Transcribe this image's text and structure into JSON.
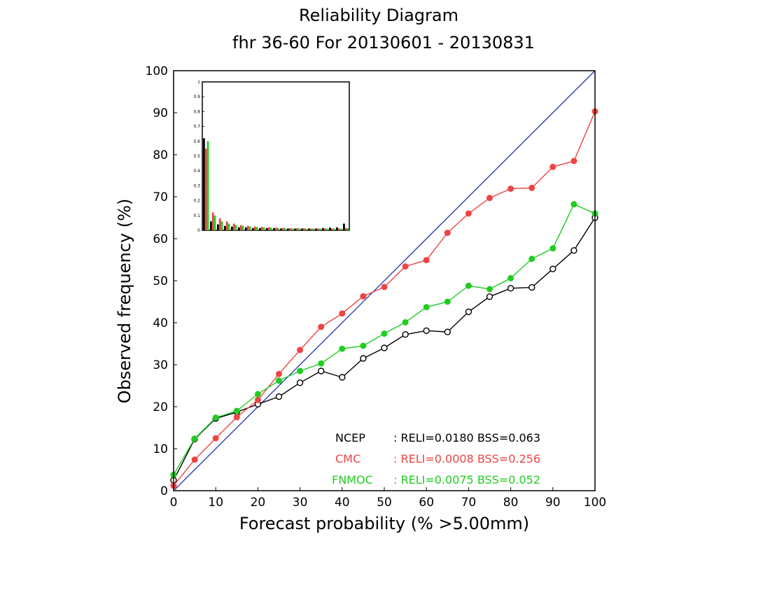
{
  "chart_data": {
    "type": "line",
    "title": "Reliability Diagram",
    "subtitle": "fhr 36-60 For 20130601 - 20130831",
    "xlabel": "Forecast probability (% >5.00mm)",
    "ylabel": "Observed frequency (%)",
    "xlim": [
      0,
      100
    ],
    "ylim": [
      0,
      100
    ],
    "xticks": [
      "0",
      "10",
      "20",
      "30",
      "40",
      "50",
      "60",
      "70",
      "80",
      "90",
      "100"
    ],
    "yticks": [
      "0",
      "10",
      "20",
      "30",
      "40",
      "50",
      "60",
      "70",
      "80",
      "90",
      "100"
    ],
    "grid": false,
    "diagonal_color": "#2233aa",
    "series": [
      {
        "name": "NCEP",
        "color": "#000000",
        "marker": "open-circle",
        "x": [
          0,
          5,
          10,
          15,
          20,
          25,
          30,
          35,
          40,
          45,
          50,
          55,
          60,
          65,
          70,
          75,
          80,
          85,
          90,
          95,
          100
        ],
        "y": [
          2.5,
          12.3,
          17.2,
          18.7,
          20.6,
          22.4,
          25.7,
          28.5,
          27.0,
          31.5,
          34.0,
          37.2,
          38.1,
          37.8,
          42.6,
          46.2,
          48.2,
          48.4,
          52.8,
          57.2,
          65.0
        ]
      },
      {
        "name": "CMC",
        "color": "#ee4444",
        "marker": "filled-circle",
        "x": [
          0,
          5,
          10,
          15,
          20,
          25,
          30,
          35,
          40,
          45,
          50,
          55,
          60,
          65,
          70,
          75,
          80,
          85,
          90,
          95,
          100
        ],
        "y": [
          1.2,
          7.4,
          12.5,
          17.5,
          21.6,
          27.8,
          33.5,
          39.0,
          42.2,
          46.3,
          48.5,
          53.4,
          54.9,
          61.4,
          66.0,
          69.7,
          71.9,
          72.1,
          77.1,
          78.5,
          90.3
        ]
      },
      {
        "name": "FNMOC",
        "color": "#22cc22",
        "marker": "filled-circle",
        "x": [
          0,
          5,
          10,
          15,
          20,
          25,
          30,
          35,
          40,
          45,
          50,
          55,
          60,
          65,
          70,
          75,
          80,
          85,
          90,
          95,
          100
        ],
        "y": [
          3.8,
          12.4,
          17.4,
          19.0,
          23.0,
          26.2,
          28.5,
          30.3,
          33.8,
          34.5,
          37.4,
          40.1,
          43.7,
          45.0,
          48.8,
          48.0,
          50.6,
          55.2,
          57.7,
          68.2,
          66.0
        ]
      }
    ],
    "legend": [
      {
        "name": "NCEP",
        "stats": ": RELI=0.0180  BSS=0.063",
        "color": "#000000"
      },
      {
        "name": "CMC",
        "stats": ": RELI=0.0008  BSS=0.256",
        "color": "#ee4444"
      },
      {
        "name": "FNMOC",
        "stats": ": RELI=0.0075  BSS=0.052",
        "color": "#22cc22"
      }
    ],
    "legend_position": "bottom-right",
    "inset": {
      "type": "bar",
      "ylim": [
        0,
        1
      ],
      "yticks": [
        "0",
        "0.1",
        "0.2",
        "0.3",
        "0.4",
        "0.5",
        "0.6",
        "0.7",
        "0.8",
        "0.9",
        "1"
      ],
      "series": [
        {
          "name": "NCEP",
          "color": "#000000",
          "values": [
            0.62,
            0.06,
            0.04,
            0.03,
            0.025,
            0.02,
            0.02,
            0.015,
            0.015,
            0.015,
            0.015,
            0.012,
            0.012,
            0.012,
            0.012,
            0.012,
            0.012,
            0.015,
            0.018,
            0.02,
            0.045
          ]
        },
        {
          "name": "CMC",
          "color": "#ee4444",
          "values": [
            0.55,
            0.12,
            0.08,
            0.06,
            0.045,
            0.035,
            0.03,
            0.025,
            0.022,
            0.02,
            0.018,
            0.016,
            0.015,
            0.014,
            0.013,
            0.012,
            0.012,
            0.012,
            0.012,
            0.012,
            0.015
          ]
        },
        {
          "name": "FNMOC",
          "color": "#22cc22",
          "values": [
            0.6,
            0.1,
            0.06,
            0.045,
            0.035,
            0.03,
            0.025,
            0.022,
            0.02,
            0.018,
            0.016,
            0.015,
            0.014,
            0.013,
            0.012,
            0.012,
            0.012,
            0.012,
            0.012,
            0.012,
            0.015
          ]
        }
      ]
    }
  }
}
